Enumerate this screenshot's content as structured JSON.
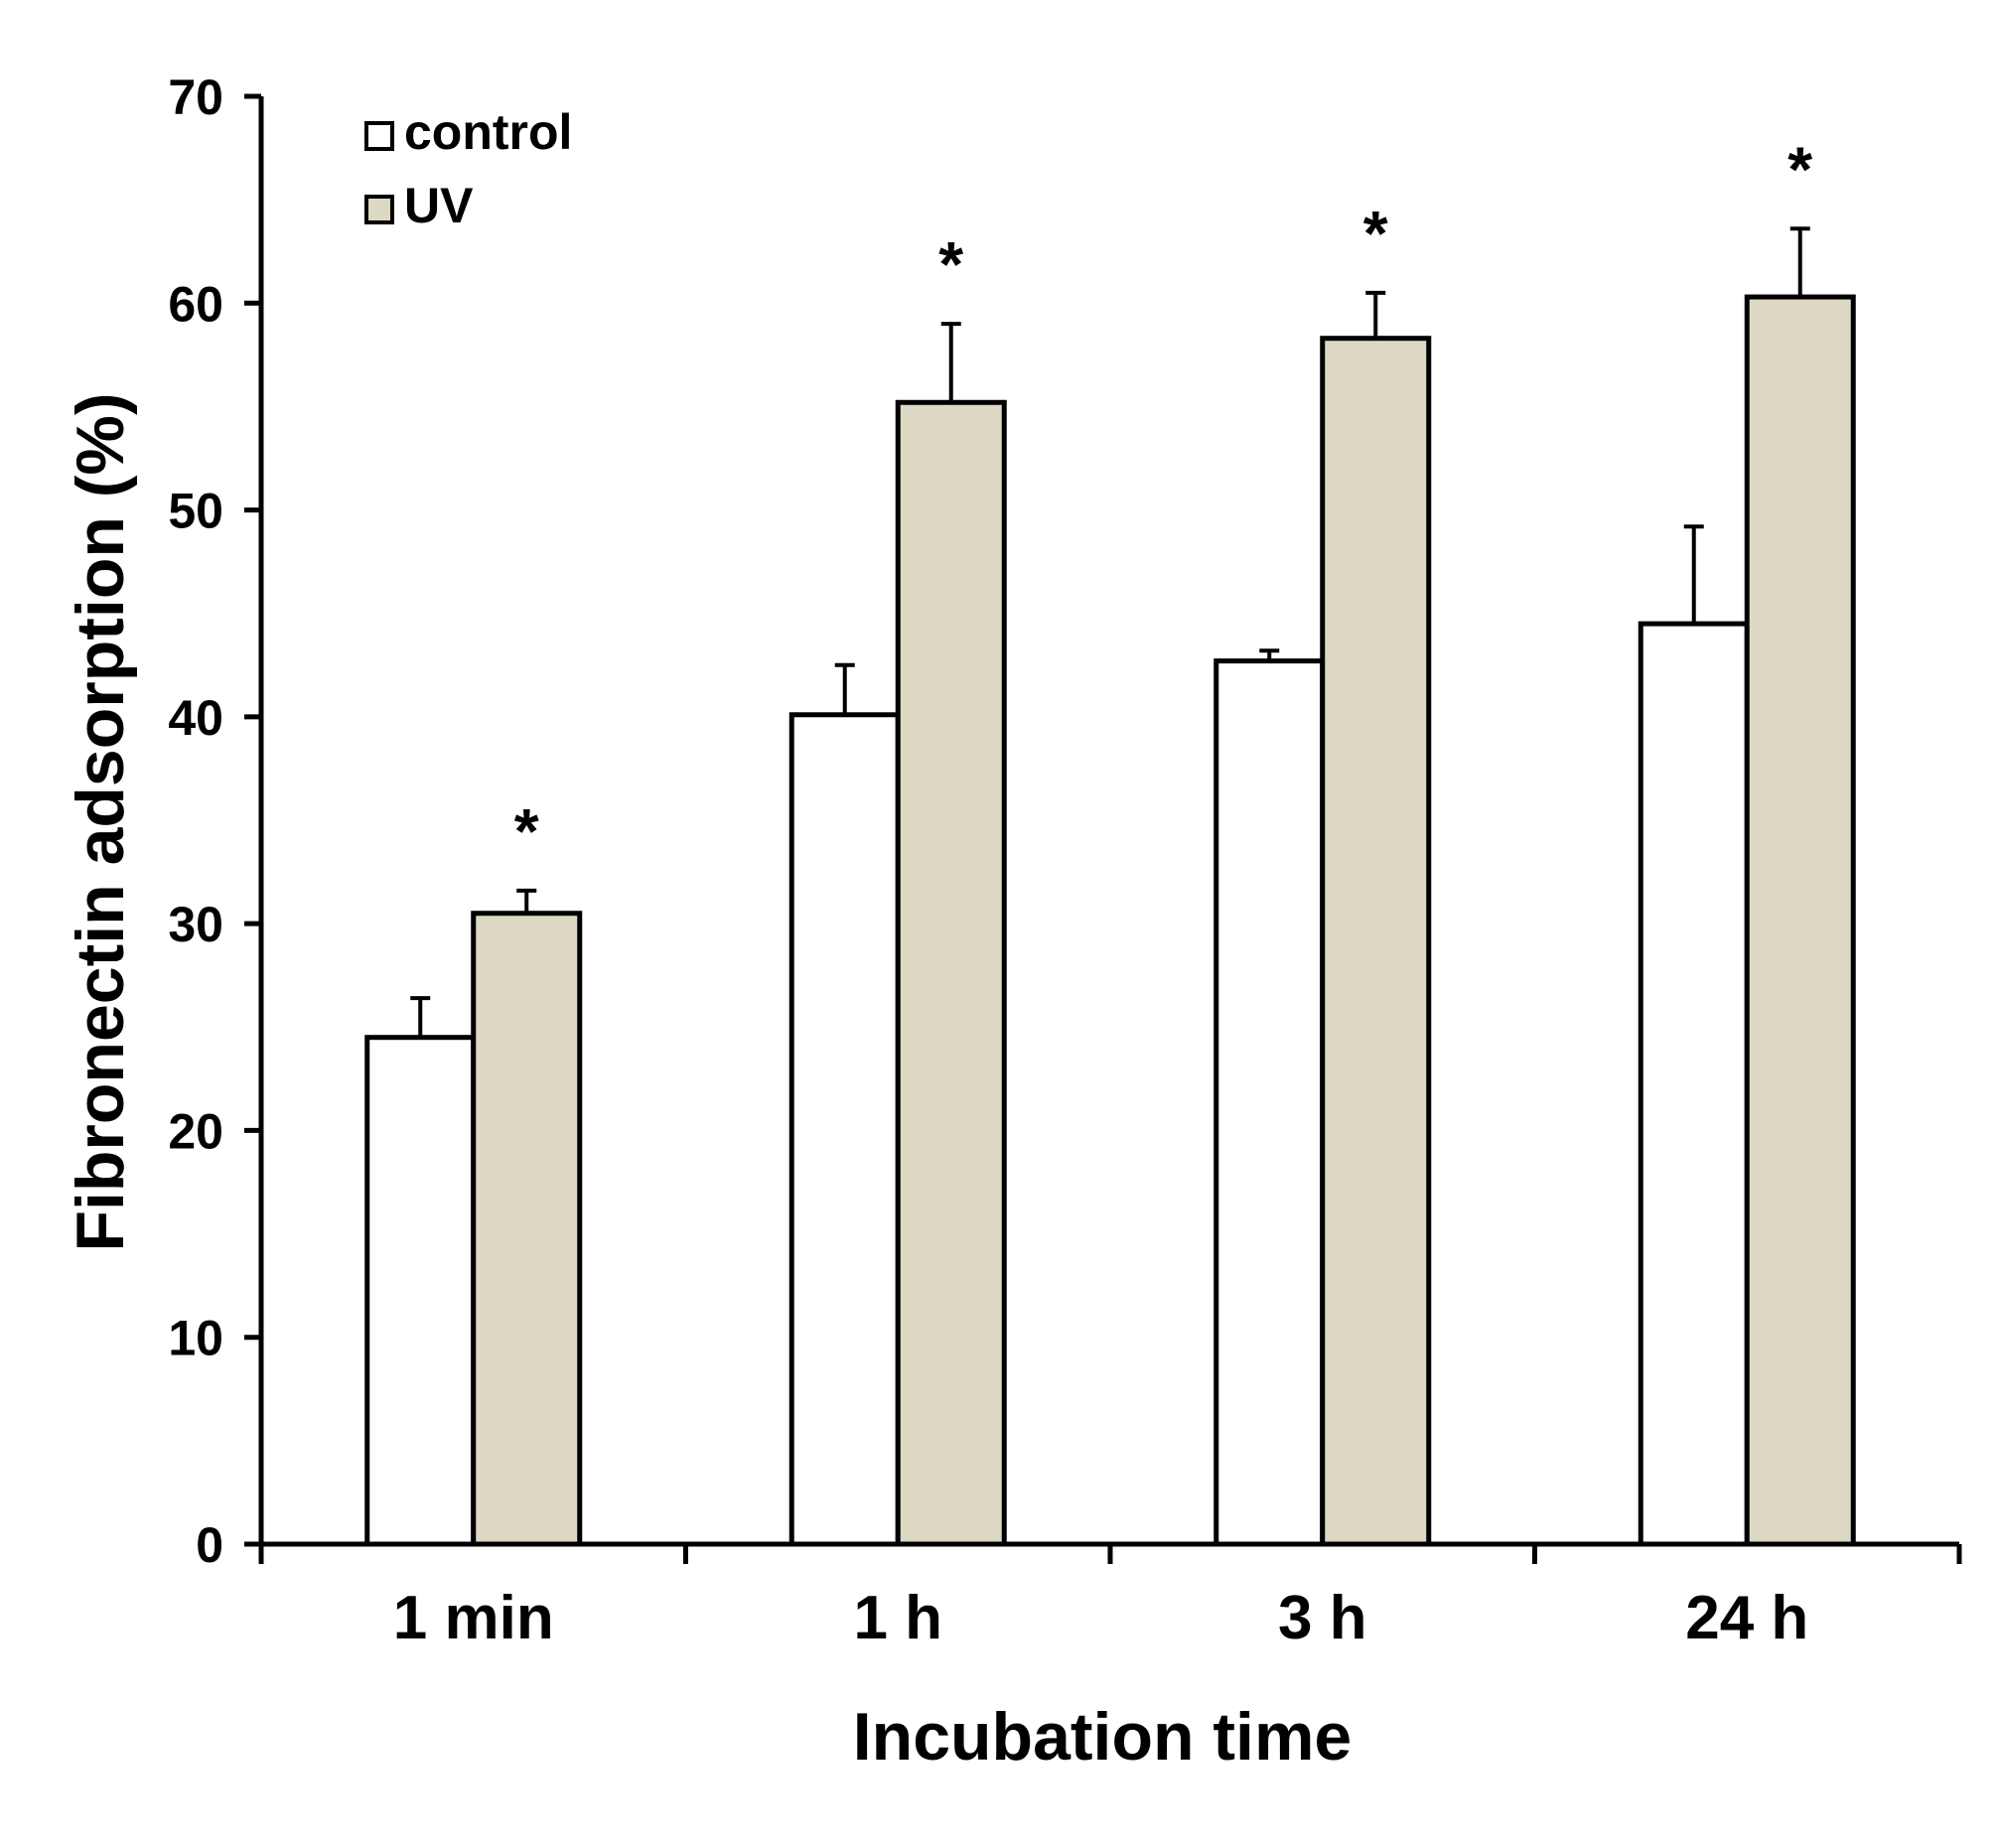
{
  "chart_data": {
    "type": "bar",
    "title": "",
    "xlabel": "Incubation time",
    "ylabel": "Fibronectin adsorption (%)",
    "ylim": [
      0,
      70
    ],
    "yticks": [
      0,
      10,
      20,
      30,
      40,
      50,
      60,
      70
    ],
    "ytick_labels": [
      "0",
      "10",
      "20",
      "30",
      "40",
      "50",
      "60",
      "70"
    ],
    "categories": [
      "1 min",
      "1 h",
      "3 h",
      "24 h"
    ],
    "series": [
      {
        "name": "control",
        "values": [
          24.5,
          40.1,
          42.7,
          44.5
        ],
        "errors": [
          1.9,
          2.4,
          0.5,
          4.7
        ],
        "color": "#ffffff"
      },
      {
        "name": "UV",
        "values": [
          30.5,
          55.2,
          58.3,
          60.3
        ],
        "errors": [
          1.1,
          3.8,
          2.2,
          3.3
        ],
        "color": "#ddd8c4"
      }
    ],
    "significance": {
      "series": "UV",
      "marker": "*",
      "markers": [
        "*",
        "*",
        "*",
        "*"
      ]
    },
    "legend": {
      "position": "top-left",
      "entries": [
        "control",
        "UV"
      ]
    },
    "grid": false
  }
}
